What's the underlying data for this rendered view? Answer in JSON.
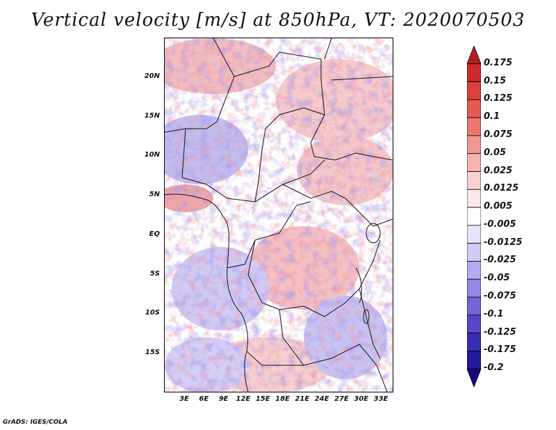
{
  "title": "Vertical velocity [m/s] at 850hPa, VT: 2020070503",
  "latitude_labels": [
    "20N",
    "15N",
    "10N",
    "5N",
    "EQ",
    "5S",
    "10S",
    "15S"
  ],
  "longitude_labels": [
    "3E",
    "6E",
    "9E",
    "12E",
    "15E",
    "18E",
    "21E",
    "24E",
    "27E",
    "30E",
    "33E"
  ],
  "colorbar": {
    "labels": [
      "0.175",
      "0.15",
      "0.125",
      "0.1",
      "0.075",
      "0.05",
      "0.025",
      "0.0125",
      "0.005",
      "-0.005",
      "-0.0125",
      "-0.025",
      "-0.05",
      "-0.075",
      "-0.1",
      "-0.125",
      "-0.175",
      "-0.2"
    ],
    "colors": [
      "#b51f24",
      "#cc2b2b",
      "#dc3f3a",
      "#e65a52",
      "#ee7670",
      "#f39591",
      "#f7b3b0",
      "#fad0ce",
      "#fde7e6",
      "#ffffff",
      "#e6e4fb",
      "#cfcaf6",
      "#b2aaf0",
      "#9288e6",
      "#7266d9",
      "#5447c9",
      "#3a2db5",
      "#24199c",
      "#140c7d"
    ]
  },
  "credit": "GrADS: IGES/COLA"
}
